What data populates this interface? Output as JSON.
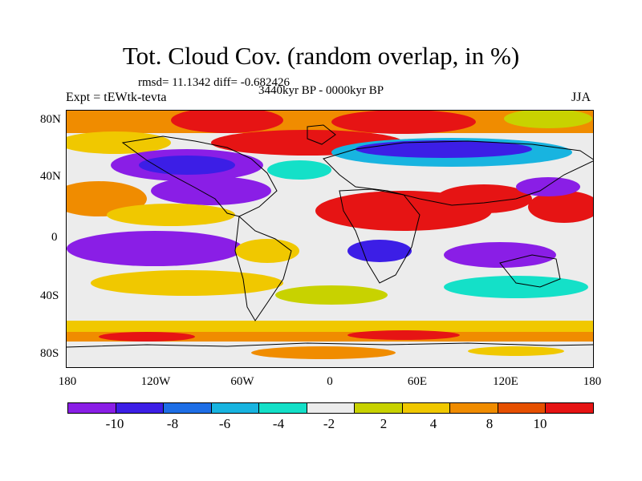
{
  "title": "Tot. Cloud Cov. (random overlap, in %)",
  "stats": "rmsd= 11.1342 diff= -0.682426",
  "experiment": "Expt = tEWtk-tevta",
  "period": "3440kyr BP - 0000kyr BP",
  "season": "JJA",
  "map": {
    "lat_ticks": [
      "80N",
      "40N",
      "0",
      "40S",
      "80S"
    ],
    "lon_ticks": [
      "180",
      "120W",
      "60W",
      "0",
      "60E",
      "120E",
      "180"
    ]
  },
  "colorbar": {
    "colors": [
      "#8a1ee6",
      "#3c1ee6",
      "#1e6ee6",
      "#18b4e0",
      "#14e0c8",
      "#ececec",
      "#c8d200",
      "#f0c800",
      "#f08c00",
      "#e65000",
      "#e61414"
    ],
    "labels": [
      "-10",
      "-8",
      "-6",
      "-4",
      "-2",
      "2",
      "4",
      "8",
      "10"
    ]
  }
}
